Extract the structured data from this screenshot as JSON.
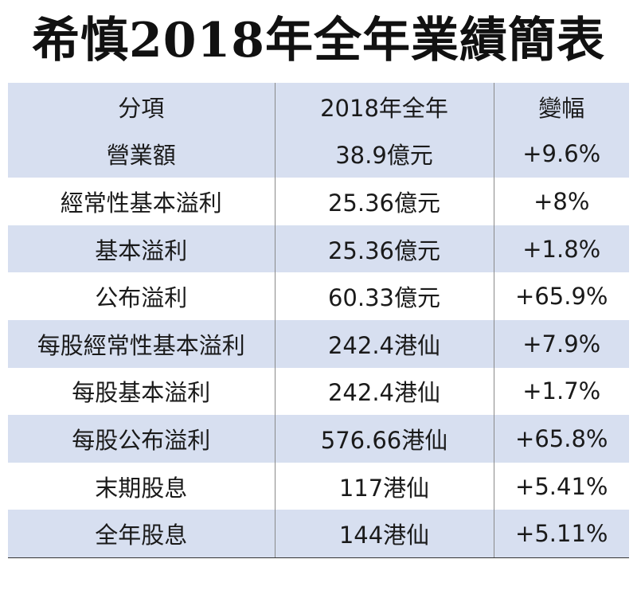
{
  "title": "希慎2018年全年業績簡表",
  "headers": [
    "分項",
    "2018年全年",
    "變幅"
  ],
  "rows": [
    {
      "item": "營業額",
      "value": "38.9億元",
      "change": "+9.6%"
    },
    {
      "item": "經常性基本溢利",
      "value": "25.36億元",
      "change": "+8%"
    },
    {
      "item": "基本溢利",
      "value": "25.36億元",
      "change": "+1.8%"
    },
    {
      "item": "公布溢利",
      "value": "60.33億元",
      "change": "+65.9%"
    },
    {
      "item": "每股經常性基本溢利",
      "value": "242.4港仙",
      "change": "+7.9%"
    },
    {
      "item": "每股基本溢利",
      "value": "242.4港仙",
      "change": "+1.7%"
    },
    {
      "item": "每股公布溢利",
      "value": "576.66港仙",
      "change": "+65.8%"
    },
    {
      "item": "末期股息",
      "value": "117港仙",
      "change": "+5.41%"
    },
    {
      "item": "全年股息",
      "value": "144港仙",
      "change": "+5.11%"
    }
  ],
  "colors": {
    "row_stripe": "#d7dff0",
    "text": "#1a1a1a"
  }
}
